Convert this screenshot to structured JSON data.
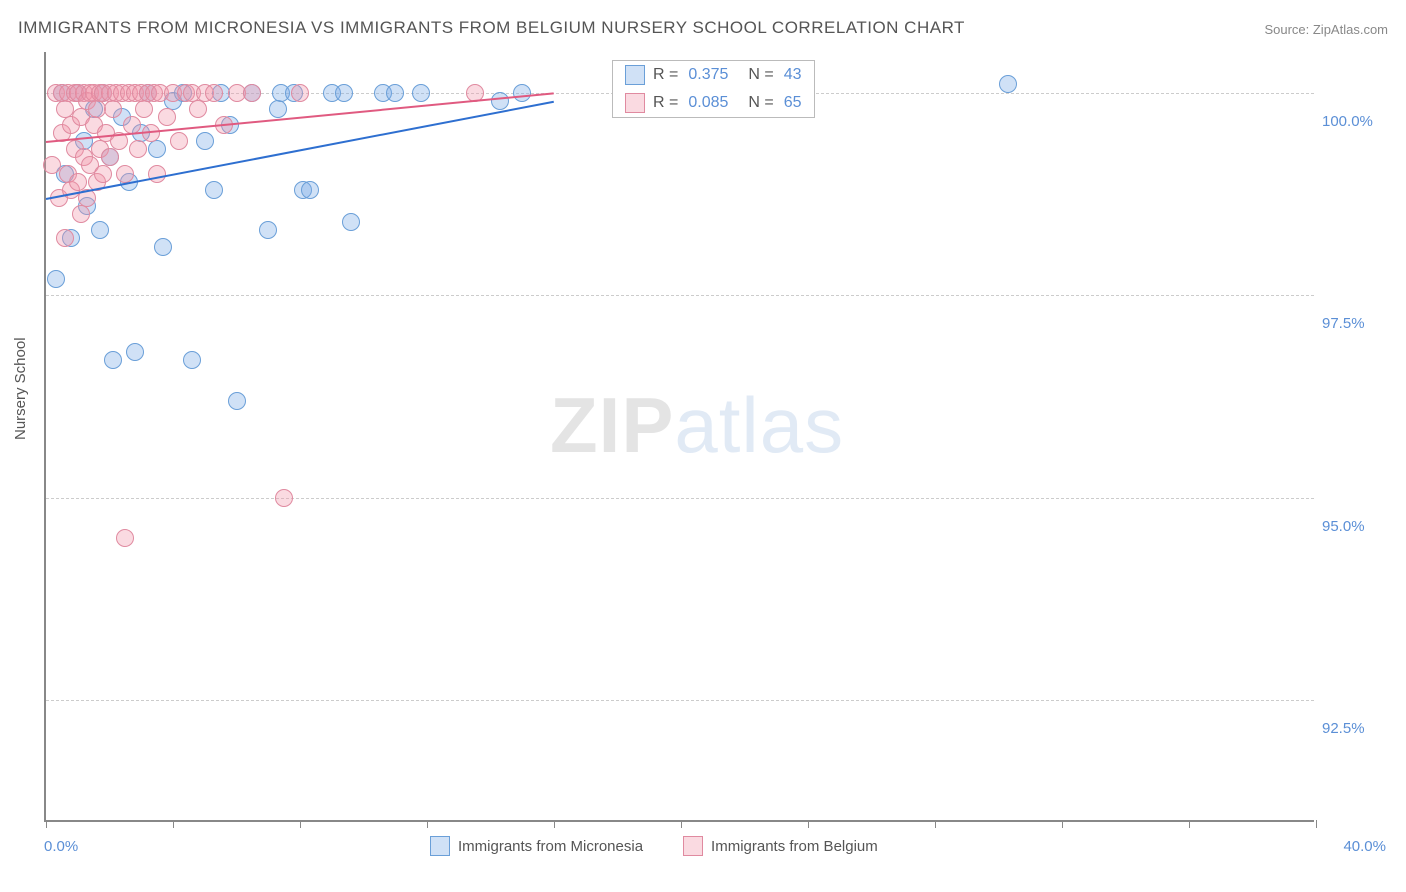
{
  "title": "IMMIGRANTS FROM MICRONESIA VS IMMIGRANTS FROM BELGIUM NURSERY SCHOOL CORRELATION CHART",
  "source": "Source: ZipAtlas.com",
  "watermark": {
    "part1": "ZIP",
    "part2": "atlas"
  },
  "chart": {
    "type": "scatter",
    "background_color": "#ffffff",
    "grid_color": "#cccccc",
    "axis_color": "#888888",
    "xlim": [
      0,
      40
    ],
    "ylim": [
      91.0,
      100.5
    ],
    "x_ticks": [
      0,
      4,
      8,
      12,
      16,
      20,
      24,
      28,
      32,
      36,
      40
    ],
    "x_tick_labels": {
      "start": "0.0%",
      "end": "40.0%"
    },
    "y_grid": [
      92.5,
      95.0,
      97.5,
      100.0
    ],
    "y_tick_labels": [
      "92.5%",
      "95.0%",
      "97.5%",
      "100.0%"
    ],
    "y_axis_title": "Nursery School",
    "point_radius": 9,
    "point_border_width": 1,
    "series": [
      {
        "name": "Immigrants from Micronesia",
        "fill": "rgba(120,170,230,0.35)",
        "stroke": "#6a9fd8",
        "line_color": "#2e6fd0",
        "R": "0.375",
        "N": "43",
        "trend": {
          "x1": 0.0,
          "y1": 98.7,
          "x2": 16.0,
          "y2": 99.9
        },
        "points": [
          [
            0.3,
            97.7
          ],
          [
            0.5,
            100.0
          ],
          [
            0.6,
            99.0
          ],
          [
            0.8,
            98.2
          ],
          [
            1.0,
            100.0
          ],
          [
            1.2,
            99.4
          ],
          [
            1.3,
            98.6
          ],
          [
            1.5,
            99.8
          ],
          [
            1.7,
            98.3
          ],
          [
            1.8,
            100.0
          ],
          [
            2.0,
            99.2
          ],
          [
            2.1,
            96.7
          ],
          [
            2.4,
            99.7
          ],
          [
            2.6,
            98.9
          ],
          [
            2.8,
            96.8
          ],
          [
            3.0,
            99.5
          ],
          [
            3.2,
            100.0
          ],
          [
            3.5,
            99.3
          ],
          [
            3.7,
            98.1
          ],
          [
            4.0,
            99.9
          ],
          [
            4.3,
            100.0
          ],
          [
            4.6,
            96.7
          ],
          [
            5.0,
            99.4
          ],
          [
            5.3,
            98.8
          ],
          [
            5.5,
            100.0
          ],
          [
            5.8,
            99.6
          ],
          [
            6.0,
            96.2
          ],
          [
            6.5,
            100.0
          ],
          [
            7.0,
            98.3
          ],
          [
            7.3,
            99.8
          ],
          [
            7.4,
            100.0
          ],
          [
            7.8,
            100.0
          ],
          [
            8.1,
            98.8
          ],
          [
            8.3,
            98.8
          ],
          [
            9.0,
            100.0
          ],
          [
            9.4,
            100.0
          ],
          [
            9.6,
            98.4
          ],
          [
            10.6,
            100.0
          ],
          [
            11.0,
            100.0
          ],
          [
            11.8,
            100.0
          ],
          [
            14.3,
            99.9
          ],
          [
            15.0,
            100.0
          ],
          [
            30.3,
            100.1
          ]
        ]
      },
      {
        "name": "Immigrants from Belgium",
        "fill": "rgba(240,150,170,0.35)",
        "stroke": "#e08aa0",
        "line_color": "#e05a80",
        "R": "0.085",
        "N": "65",
        "trend": {
          "x1": 0.0,
          "y1": 99.4,
          "x2": 16.0,
          "y2": 100.0
        },
        "points": [
          [
            0.2,
            99.1
          ],
          [
            0.3,
            100.0
          ],
          [
            0.4,
            98.7
          ],
          [
            0.5,
            99.5
          ],
          [
            0.5,
            100.0
          ],
          [
            0.6,
            99.8
          ],
          [
            0.6,
            98.2
          ],
          [
            0.7,
            99.0
          ],
          [
            0.7,
            100.0
          ],
          [
            0.8,
            99.6
          ],
          [
            0.8,
            98.8
          ],
          [
            0.9,
            100.0
          ],
          [
            0.9,
            99.3
          ],
          [
            1.0,
            98.9
          ],
          [
            1.0,
            100.0
          ],
          [
            1.1,
            99.7
          ],
          [
            1.1,
            98.5
          ],
          [
            1.2,
            100.0
          ],
          [
            1.2,
            99.2
          ],
          [
            1.3,
            99.9
          ],
          [
            1.3,
            98.7
          ],
          [
            1.4,
            100.0
          ],
          [
            1.4,
            99.1
          ],
          [
            1.5,
            99.6
          ],
          [
            1.5,
            100.0
          ],
          [
            1.6,
            98.9
          ],
          [
            1.6,
            99.8
          ],
          [
            1.7,
            100.0
          ],
          [
            1.7,
            99.3
          ],
          [
            1.8,
            99.0
          ],
          [
            1.8,
            100.0
          ],
          [
            1.9,
            99.5
          ],
          [
            2.0,
            100.0
          ],
          [
            2.0,
            99.2
          ],
          [
            2.1,
            99.8
          ],
          [
            2.2,
            100.0
          ],
          [
            2.3,
            99.4
          ],
          [
            2.4,
            100.0
          ],
          [
            2.5,
            99.0
          ],
          [
            2.5,
            94.5
          ],
          [
            2.6,
            100.0
          ],
          [
            2.7,
            99.6
          ],
          [
            2.8,
            100.0
          ],
          [
            2.9,
            99.3
          ],
          [
            3.0,
            100.0
          ],
          [
            3.1,
            99.8
          ],
          [
            3.2,
            100.0
          ],
          [
            3.3,
            99.5
          ],
          [
            3.4,
            100.0
          ],
          [
            3.5,
            99.0
          ],
          [
            3.6,
            100.0
          ],
          [
            3.8,
            99.7
          ],
          [
            4.0,
            100.0
          ],
          [
            4.2,
            99.4
          ],
          [
            4.4,
            100.0
          ],
          [
            4.6,
            100.0
          ],
          [
            4.8,
            99.8
          ],
          [
            5.0,
            100.0
          ],
          [
            5.3,
            100.0
          ],
          [
            5.6,
            99.6
          ],
          [
            6.0,
            100.0
          ],
          [
            6.5,
            100.0
          ],
          [
            7.5,
            95.0
          ],
          [
            8.0,
            100.0
          ],
          [
            13.5,
            100.0
          ]
        ]
      }
    ],
    "stats_legend": {
      "r_label": "R =",
      "n_label": "N ="
    },
    "bottom_legend_labels": [
      "Immigrants from Micronesia",
      "Immigrants from Belgium"
    ]
  }
}
